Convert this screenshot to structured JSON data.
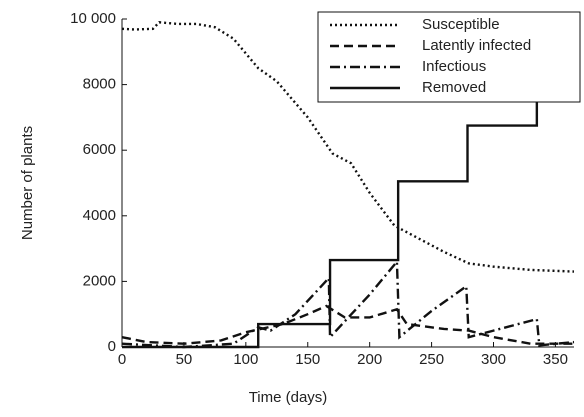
{
  "chart_data": {
    "type": "line",
    "x_label": "Time (days)",
    "y_label": "Number of plants",
    "xlim": [
      0,
      365
    ],
    "ylim": [
      0,
      10000
    ],
    "xticks": [
      0,
      50,
      100,
      150,
      200,
      250,
      300,
      350
    ],
    "yticks": [
      0,
      2000,
      4000,
      6000,
      8000,
      {
        "value": 10000,
        "label": "10 000"
      }
    ],
    "legend": "upper right",
    "series": [
      {
        "name": "Susceptible",
        "color": "#111111",
        "line_style": "dotted",
        "x": [
          0,
          10,
          25,
          30,
          45,
          60,
          75,
          90,
          110,
          125,
          150,
          170,
          185,
          200,
          220,
          240,
          260,
          280,
          300,
          330,
          365
        ],
        "values": [
          9700,
          9680,
          9700,
          9900,
          9850,
          9850,
          9750,
          9400,
          8500,
          8100,
          7000,
          5900,
          5600,
          4700,
          3700,
          3300,
          2900,
          2550,
          2450,
          2350,
          2300
        ]
      },
      {
        "name": "Latently infected",
        "color": "#111111",
        "line_style": "dashed",
        "x": [
          0,
          20,
          50,
          80,
          100,
          130,
          150,
          165,
          180,
          200,
          222,
          230,
          260,
          280,
          300,
          330,
          365
        ],
        "values": [
          300,
          150,
          100,
          200,
          450,
          700,
          1000,
          1250,
          900,
          900,
          1150,
          700,
          550,
          500,
          300,
          100,
          100
        ]
      },
      {
        "name": "Infectious",
        "color": "#111111",
        "line_style": "dashdot",
        "x": [
          0,
          50,
          90,
          110,
          120,
          140,
          167,
          168,
          200,
          222,
          224,
          250,
          278,
          280,
          300,
          335,
          337,
          365
        ],
        "values": [
          100,
          0,
          100,
          600,
          500,
          1000,
          2100,
          300,
          1600,
          2600,
          300,
          1100,
          1850,
          300,
          500,
          850,
          50,
          150
        ]
      },
      {
        "name": "Removed",
        "color": "#111111",
        "line_style": "solid",
        "x": [
          0,
          110,
          110,
          168,
          168,
          223,
          223,
          279,
          279,
          335,
          335,
          365
        ],
        "values": [
          0,
          0,
          700,
          700,
          2650,
          2650,
          5050,
          5050,
          6750,
          6750,
          7500,
          7500
        ]
      }
    ]
  }
}
